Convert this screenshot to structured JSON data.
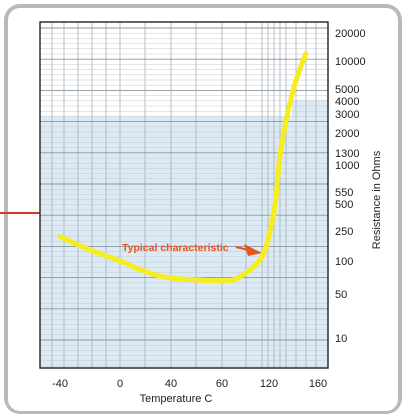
{
  "chart_data": {
    "type": "line",
    "title": "",
    "xlabel": "Temperature C",
    "ylabel": "Resistance in Ohms",
    "x_ticks": [
      "-40",
      "0",
      "40",
      "60",
      "120",
      "160"
    ],
    "y_ticks": [
      "20000",
      "10000",
      "5000",
      "4000",
      "3000",
      "2000",
      "1300",
      "1000",
      "550",
      "500",
      "250",
      "100",
      "50",
      "10"
    ],
    "ylim": [
      5,
      20000
    ],
    "y_scale": "log",
    "grid": true,
    "series": [
      {
        "name": "",
        "color": "#f5ee1c",
        "x": [
          -40,
          -20,
          0,
          20,
          40,
          60,
          80,
          100,
          110,
          115,
          120,
          125,
          130,
          140,
          150
        ],
        "y": [
          210,
          140,
          100,
          80,
          70,
          66,
          70,
          88,
          110,
          140,
          220,
          500,
          1500,
          5000,
          12000
        ]
      }
    ],
    "annotations": [
      {
        "text": "Typical characteristic",
        "color": "#e8541e"
      }
    ]
  }
}
